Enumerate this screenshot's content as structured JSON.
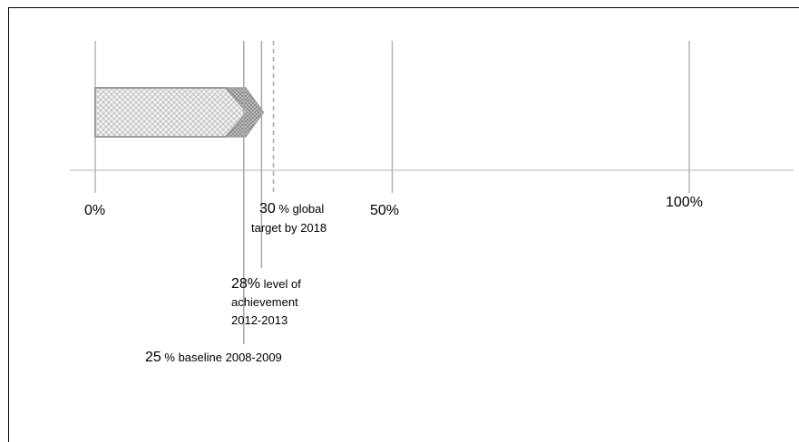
{
  "chart_data": {
    "type": "bar",
    "xlim": [
      0,
      100
    ],
    "x_ticks": [
      "0%",
      "50%",
      "100%"
    ],
    "baseline": {
      "value": 25,
      "number": "25",
      "unit": " %",
      "text": " baseline 2008-2009"
    },
    "achievement": {
      "value": 28,
      "number": "28%",
      "text_lines": [
        " level of",
        "achievement",
        "2012-2013"
      ]
    },
    "target": {
      "value": 30,
      "number": "30",
      "unit": " %",
      "text_lines": [
        " global",
        "target by 2018"
      ]
    },
    "colors": {
      "bar_fill": "#e6e6e6",
      "bar_hatch": "#9a9a9a",
      "line": "#9a9a9a",
      "frame": "#000000"
    }
  }
}
